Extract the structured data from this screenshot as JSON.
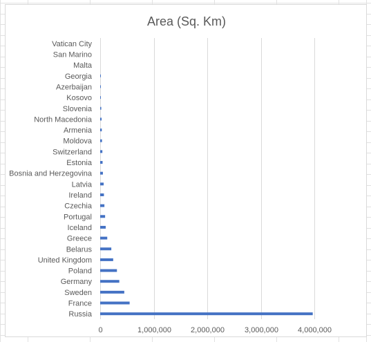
{
  "chart_data": {
    "type": "bar",
    "orientation": "horizontal",
    "title": "Area (Sq. Km)",
    "xlabel": "",
    "ylabel": "",
    "xlim": [
      0,
      4000000
    ],
    "x_ticks": [
      "0",
      "1,000,000",
      "2,000,000",
      "3,000,000",
      "4,000,000"
    ],
    "gridlines": true,
    "legend": "none",
    "color": "#4472c4",
    "categories": [
      "Russia",
      "France",
      "Sweden",
      "Germany",
      "Poland",
      "United Kingdom",
      "Belarus",
      "Greece",
      "Iceland",
      "Portugal",
      "Czechia",
      "Ireland",
      "Latvia",
      "Bosnia and Herzegovina",
      "Estonia",
      "Switzerland",
      "Moldova",
      "Armenia",
      "North Macedonia",
      "Slovenia",
      "Kosovo",
      "Azerbaijan",
      "Georgia",
      "Malta",
      "San Marino",
      "Vatican City"
    ],
    "values": [
      3970000,
      550000,
      450000,
      357000,
      313000,
      243000,
      208000,
      132000,
      103000,
      92000,
      79000,
      70000,
      65000,
      51000,
      45000,
      41000,
      34000,
      30000,
      26000,
      20000,
      11000,
      8600,
      7000,
      316,
      61,
      0.44
    ]
  }
}
